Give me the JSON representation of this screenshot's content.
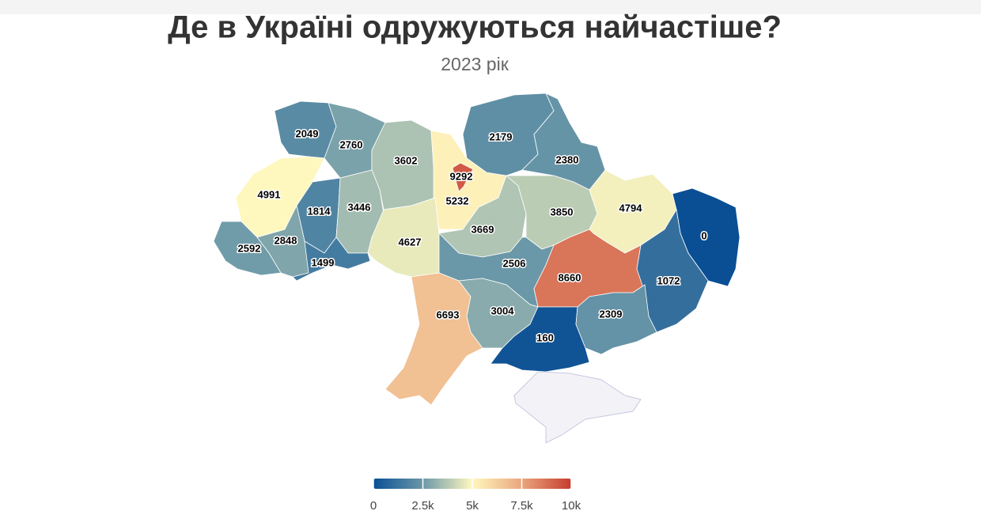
{
  "chart_data": {
    "type": "choropleth",
    "title": "Де в Україні одружуються найчастіше?",
    "subtitle": "2023 рік",
    "values": [
      2049,
      2760,
      3602,
      9292,
      5232,
      2179,
      2380,
      4991,
      1814,
      3446,
      4627,
      3669,
      3850,
      4794,
      0,
      2848,
      2592,
      1499,
      2506,
      8660,
      1072,
      6693,
      3004,
      160,
      2309
    ],
    "colorscale": [
      "#0a4f94",
      "#6b98a8",
      "#fff8bf",
      "#eaa67e",
      "#c63c2f"
    ],
    "zlim": [
      0,
      10000
    ],
    "colorbar_ticks": [
      0,
      {
        "value": 2500,
        "label": "2.5k"
      },
      {
        "value": 5000,
        "label": "5k"
      },
      {
        "value": 7500,
        "label": "7.5k"
      },
      {
        "value": 10000,
        "label": "10k"
      }
    ]
  }
}
